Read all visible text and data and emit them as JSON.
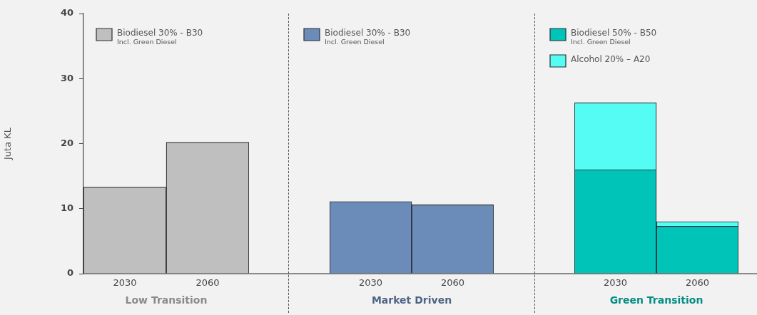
{
  "chart_data": [
    {
      "type": "bar",
      "categories": [
        "2030",
        "2060"
      ],
      "xlabel": "Low Transition",
      "ylabel": "Juta KL",
      "ylim": [
        0,
        40
      ],
      "yticks": [
        0,
        10,
        20,
        30,
        40
      ],
      "legend": "top left",
      "grid": false,
      "annotations": [
        "Incl. Green Diesel"
      ],
      "series": [
        {
          "name": "Biodiesel 30% - B30",
          "color": "#bfbfbf",
          "values": [
            13.3,
            20.2
          ]
        }
      ]
    },
    {
      "type": "bar",
      "categories": [
        "2030",
        "2060"
      ],
      "xlabel": "Market Driven",
      "ylim": [
        0,
        40
      ],
      "yticks": [
        0,
        10,
        20,
        30,
        40
      ],
      "tick_labels": "x",
      "legend": "top left",
      "grid": false,
      "annotations": [
        "Incl. Green Diesel"
      ],
      "series": [
        {
          "name": "Biodiesel 30% - B30",
          "color": "#6b8cb8",
          "values": [
            11.1,
            10.6
          ]
        }
      ]
    },
    {
      "type": "bar",
      "categories": [
        "2030",
        "2060"
      ],
      "xlabel": "Green Transition",
      "ylim": [
        0,
        40
      ],
      "yticks": [
        0,
        10,
        20,
        30,
        40
      ],
      "tick_labels": "x",
      "stacked": true,
      "legend": "top left",
      "grid": false,
      "annotations": [
        "Incl. Green Diesel"
      ],
      "series": [
        {
          "name": "Biodiesel 50% - B50",
          "color": "#00c4b8",
          "values": [
            16.0,
            7.3
          ]
        },
        {
          "name": "Alcohol 20% – A20",
          "color": "#55fcf4",
          "values": [
            10.3,
            0.7
          ]
        }
      ]
    }
  ]
}
